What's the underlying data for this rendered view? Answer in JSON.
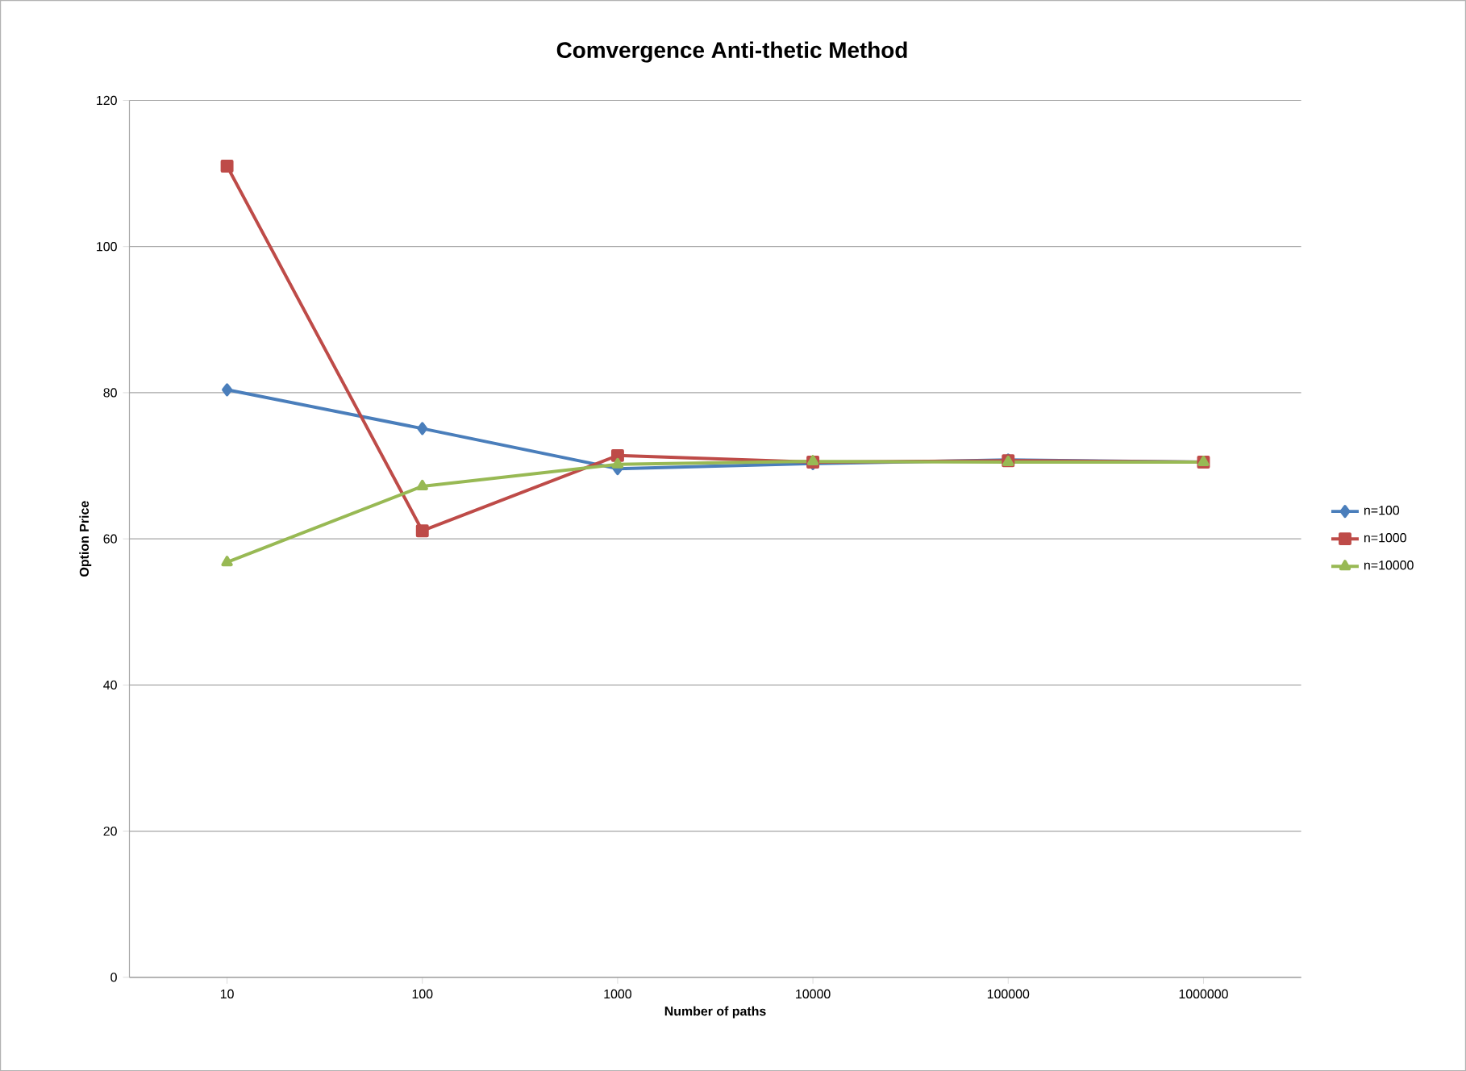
{
  "chart_data": {
    "type": "line",
    "title": "Comvergence Anti-thetic Method",
    "xlabel": "Number of paths",
    "ylabel": "Option Price",
    "categories": [
      "10",
      "100",
      "1000",
      "10000",
      "100000",
      "1000000"
    ],
    "series": [
      {
        "name": "n=100",
        "color": "#4a7ebb",
        "marker": "diamond",
        "values": [
          80.4,
          75.1,
          69.6,
          70.3,
          70.8,
          70.5
        ]
      },
      {
        "name": "n=1000",
        "color": "#be4b48",
        "marker": "square",
        "values": [
          111.0,
          61.1,
          71.4,
          70.5,
          70.7,
          70.5
        ]
      },
      {
        "name": "n=10000",
        "color": "#98b954",
        "marker": "triangle",
        "values": [
          56.8,
          67.2,
          70.2,
          70.6,
          70.5,
          70.5
        ]
      }
    ],
    "ylim": [
      0,
      120
    ],
    "yticks": [
      0,
      20,
      40,
      60,
      80,
      100,
      120
    ],
    "grid": "y",
    "legend": "right",
    "line_style": "solid"
  }
}
